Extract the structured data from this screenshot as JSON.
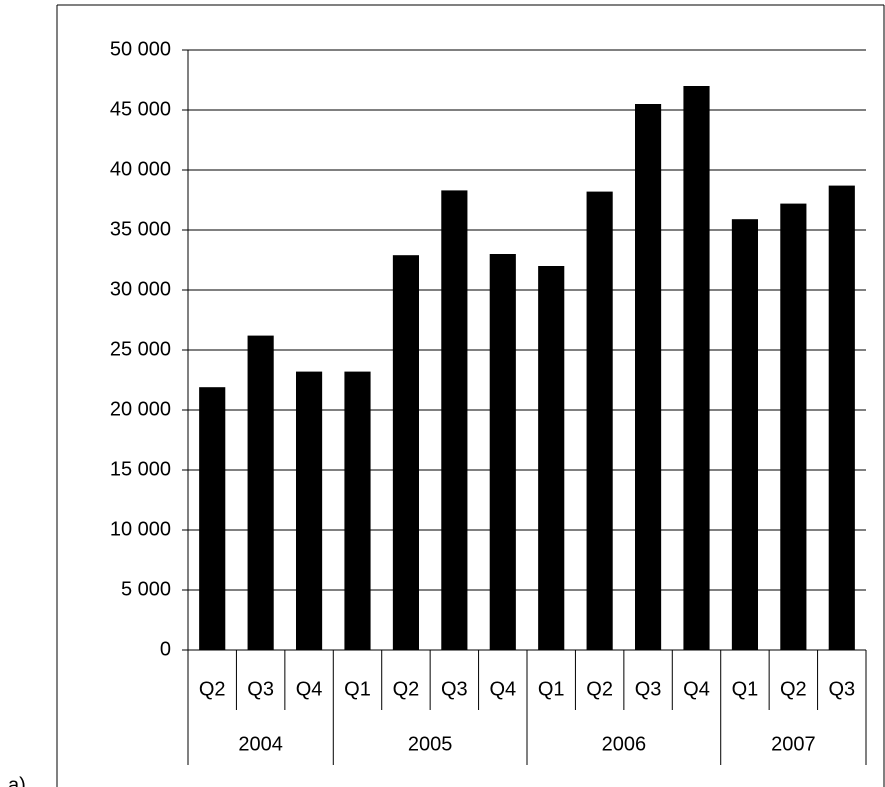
{
  "panel_label": "a)",
  "chart_data": {
    "type": "bar",
    "color": "#000000",
    "grid": true,
    "groups": [
      {
        "name": "2004",
        "categories": [
          "Q2",
          "Q3",
          "Q4"
        ],
        "values": [
          21900,
          26200,
          23200
        ]
      },
      {
        "name": "2005",
        "categories": [
          "Q1",
          "Q2",
          "Q3",
          "Q4"
        ],
        "values": [
          23200,
          32900,
          38300,
          33000
        ]
      },
      {
        "name": "2006",
        "categories": [
          "Q1",
          "Q2",
          "Q3",
          "Q4"
        ],
        "values": [
          32000,
          38200,
          45500,
          47000
        ]
      },
      {
        "name": "2007",
        "categories": [
          "Q1",
          "Q2",
          "Q3"
        ],
        "values": [
          35900,
          37200,
          38700
        ]
      }
    ],
    "ylim": [
      0,
      50000
    ],
    "yticks": [
      0,
      {
        "value": 5000,
        "label": "5 000"
      },
      {
        "value": 10000,
        "label": "10 000"
      },
      {
        "value": 15000,
        "label": "15 000"
      },
      {
        "value": 20000,
        "label": "20 000"
      },
      {
        "value": 25000,
        "label": "25 000"
      },
      {
        "value": 30000,
        "label": "30 000"
      },
      {
        "value": 35000,
        "label": "35 000"
      },
      {
        "value": 40000,
        "label": "40 000"
      },
      {
        "value": 45000,
        "label": "45 000"
      },
      {
        "value": 50000,
        "label": "50 000"
      }
    ]
  }
}
